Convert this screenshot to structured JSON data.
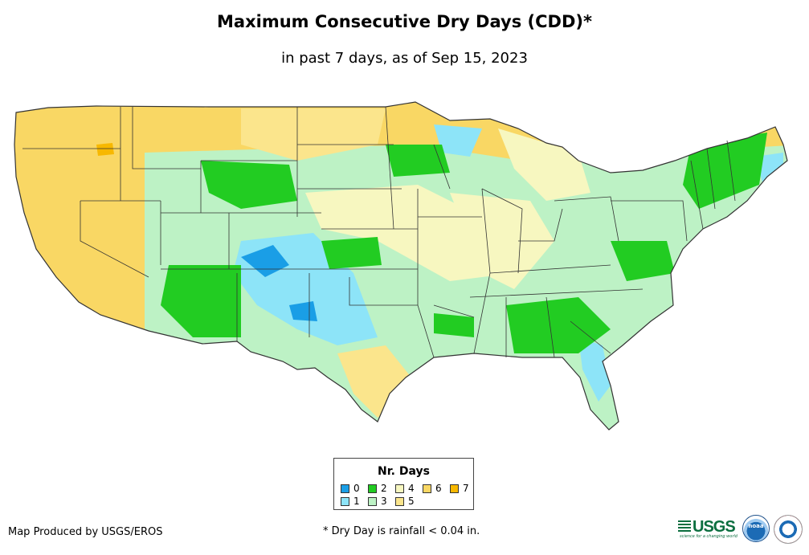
{
  "title": "Maximum Consecutive Dry Days (CDD)*",
  "subtitle": "in past 7 days, as of Sep 15, 2023",
  "legend": {
    "title": "Nr. Days",
    "items": [
      {
        "label": "0",
        "color": "#1a9ee6"
      },
      {
        "label": "1",
        "color": "#8de4f8"
      },
      {
        "label": "2",
        "color": "#22cc22"
      },
      {
        "label": "3",
        "color": "#bdf2c5"
      },
      {
        "label": "4",
        "color": "#f7f7c0"
      },
      {
        "label": "5",
        "color": "#fbe58c"
      },
      {
        "label": "6",
        "color": "#f9d764"
      },
      {
        "label": "7",
        "color": "#f7b800"
      }
    ]
  },
  "credit": "Map Produced by USGS/EROS",
  "footnote": "* Dry Day is rainfall < 0.04 in.",
  "logos": {
    "usgs": "USGS",
    "usgs_tagline": "science for a changing world",
    "noaa": "noaa"
  }
}
